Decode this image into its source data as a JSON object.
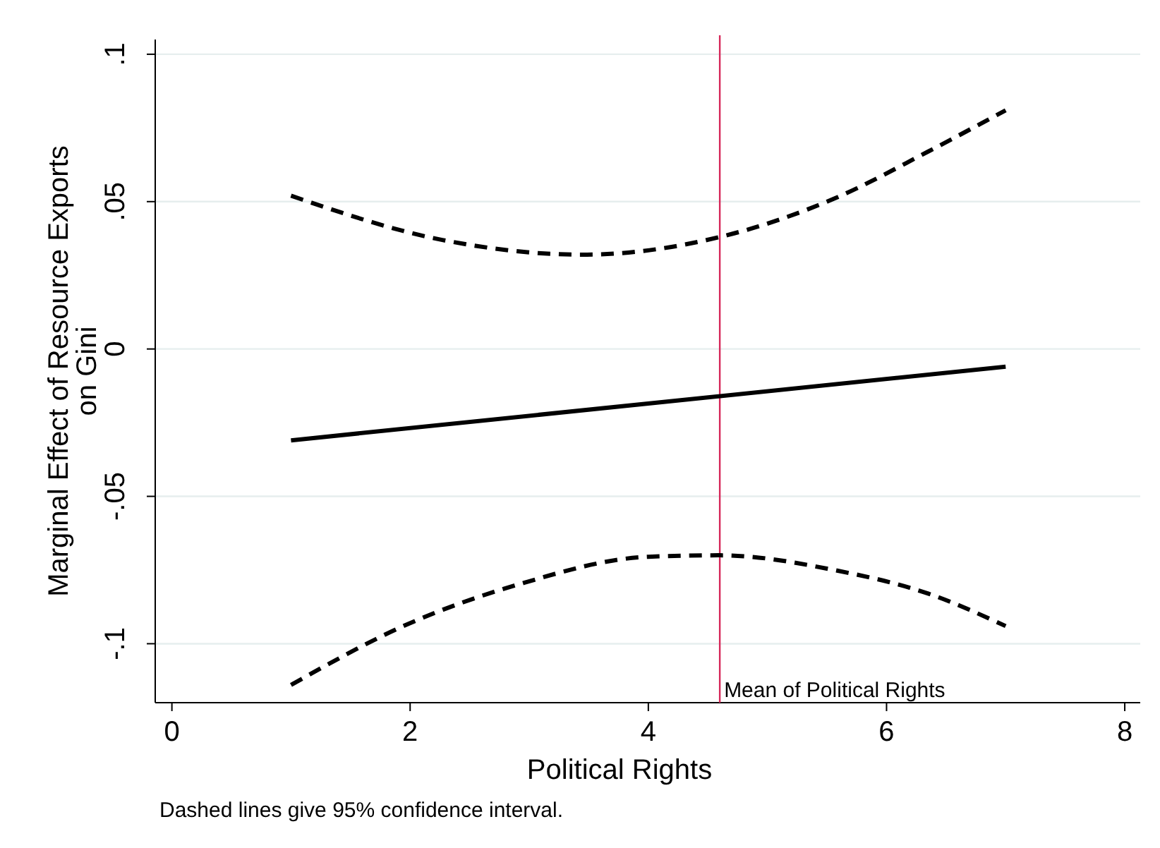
{
  "chart_data": {
    "type": "line",
    "xlabel": "Political Rights",
    "ylabel": "Marginal Effect of Resource Exports\non Gini",
    "xlim": [
      -0.14,
      8.13
    ],
    "xticks": [
      0,
      2,
      4,
      6,
      8
    ],
    "ylim": [
      -0.12,
      0.105
    ],
    "yticks": [
      {
        "value": -0.1,
        "label": "-.1"
      },
      {
        "value": -0.05,
        "label": "-.05"
      },
      {
        "value": 0,
        "label": "0"
      },
      {
        "value": 0.05,
        "label": ".05"
      },
      {
        "value": 0.1,
        "label": ".1"
      }
    ],
    "grid": "y",
    "marker": "none",
    "series": [
      {
        "color": "#000000",
        "line_style": "dashed",
        "x": [
          1,
          2.27,
          3.44,
          4.6,
          5.56,
          6.35,
          7
        ],
        "values": [
          0.052,
          0.037,
          0.032,
          0.038,
          0.051,
          0.067,
          0.081
        ]
      },
      {
        "color": "#000000",
        "line_style": "solid",
        "x": [
          1,
          7
        ],
        "values": [
          -0.031,
          -0.006
        ]
      },
      {
        "color": "#000000",
        "line_style": "dashed",
        "x": [
          1,
          2,
          2.9,
          4,
          4.6,
          5.56,
          6.35,
          7
        ],
        "values": [
          -0.114,
          -0.093,
          -0.08,
          -0.0705,
          -0.07,
          -0.075,
          -0.083,
          -0.094
        ]
      }
    ],
    "ref_lines": [
      {
        "axis": "x",
        "value": 4.6,
        "label": "Mean of Political Rights",
        "color": "#d6285a"
      }
    ],
    "annotations": [
      "Dashed lines give 95% confidence interval."
    ]
  }
}
